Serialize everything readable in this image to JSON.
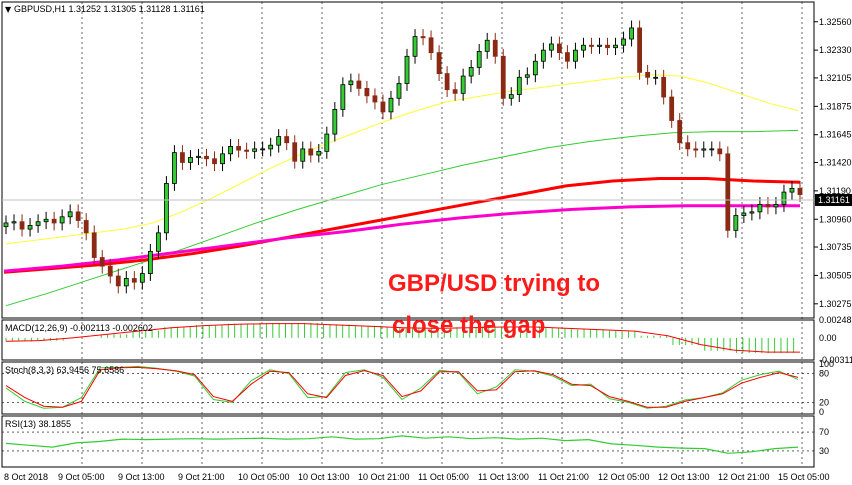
{
  "window": {
    "title": "GBPUSD,H1  1.31252 1.31305 1.31128 1.31161"
  },
  "colors": {
    "bull": "#000000",
    "bear": "#8b2a14",
    "bull_fill": "#33cc33",
    "ma_fast": "#ffff33",
    "ma_mid": "#33cc33",
    "ma_slow_red": "#ff0000",
    "ma_magenta": "#ff00cc",
    "macd_hist": "#33cc33",
    "macd_signal": "#ff0000",
    "stoch_main": "#33cc33",
    "stoch_signal": "#ff0000",
    "rsi": "#33cc33"
  },
  "annotation": {
    "line1": "GBP/USD trying to",
    "line2": "close the gap"
  },
  "chart_data": [
    {
      "type": "candlestick",
      "title": "GBPUSD,H1",
      "ohlc_readout": [
        "1.31252",
        "1.31305",
        "1.31128",
        "1.31161"
      ],
      "ylim": [
        1.3016,
        1.3272
      ],
      "y_ticks": [
        "1.32560",
        "1.32330",
        "1.32105",
        "1.31875",
        "1.31645",
        "1.31420",
        "1.31190",
        "1.30960",
        "1.30735",
        "1.30505",
        "1.30275"
      ],
      "current_price": "1.31161",
      "x_ticks": [
        "8 Oct 2018",
        "9 Oct 05:00",
        "9 Oct 13:00",
        "9 Oct 21:00",
        "10 Oct 05:00",
        "10 Oct 13:00",
        "10 Oct 21:00",
        "11 Oct 05:00",
        "11 Oct 13:00",
        "11 Oct 21:00",
        "12 Oct 05:00",
        "12 Oct 13:00",
        "12 Oct 21:00",
        "15 Oct 05:00"
      ],
      "closes": [
        1.3093,
        1.3094,
        1.3088,
        1.3091,
        1.3094,
        1.3096,
        1.3093,
        1.3098,
        1.3102,
        1.3095,
        1.3085,
        1.3065,
        1.3058,
        1.305,
        1.3042,
        1.3048,
        1.3045,
        1.3052,
        1.307,
        1.3085,
        1.3125,
        1.315,
        1.3142,
        1.3146,
        1.3147,
        1.3145,
        1.3141,
        1.3149,
        1.3155,
        1.3152,
        1.3151,
        1.3153,
        1.3153,
        1.3156,
        1.3163,
        1.3158,
        1.3143,
        1.3153,
        1.3148,
        1.3151,
        1.3165,
        1.3185,
        1.3205,
        1.3208,
        1.3202,
        1.3196,
        1.3191,
        1.3183,
        1.3194,
        1.3206,
        1.3228,
        1.3244,
        1.3243,
        1.3231,
        1.3214,
        1.3201,
        1.3198,
        1.3212,
        1.3219,
        1.3232,
        1.3241,
        1.3228,
        1.3194,
        1.3197,
        1.3211,
        1.3213,
        1.3224,
        1.3233,
        1.3238,
        1.3231,
        1.3224,
        1.3233,
        1.3237,
        1.3236,
        1.3237,
        1.3235,
        1.3237,
        1.3242,
        1.3251,
        1.3215,
        1.3211,
        1.3211,
        1.3195,
        1.3176,
        1.3158,
        1.3153,
        1.3152,
        1.3153,
        1.3153,
        1.3149,
        1.3087,
        1.3099,
        1.3101,
        1.3102,
        1.3108,
        1.3106,
        1.3108,
        1.3118,
        1.3121,
        1.3116
      ],
      "series": [
        {
          "name": "MA yellow",
          "values": [
            1.3076,
            1.3079,
            1.3082,
            1.3085,
            1.3088,
            1.3093,
            1.3102,
            1.3113,
            1.3125,
            1.3137,
            1.3148,
            1.3158,
            1.3167,
            1.3176,
            1.3184,
            1.3191,
            1.3195,
            1.3199,
            1.3202,
            1.3205,
            1.3208,
            1.3211,
            1.3213,
            1.3212,
            1.3206,
            1.3198,
            1.319,
            1.3184
          ]
        },
        {
          "name": "MA green",
          "values": [
            1.3026,
            1.3036,
            1.3047,
            1.3058,
            1.3069,
            1.3081,
            1.3093,
            1.3104,
            1.3114,
            1.3124,
            1.3132,
            1.314,
            1.3147,
            1.3154,
            1.3159,
            1.3163,
            1.3166,
            1.3167,
            1.3167,
            1.3168
          ]
        },
        {
          "name": "MA red",
          "values": [
            1.3053,
            1.3056,
            1.3059,
            1.3063,
            1.3068,
            1.3074,
            1.3081,
            1.3088,
            1.3095,
            1.3102,
            1.3109,
            1.3116,
            1.3123,
            1.3127,
            1.3129,
            1.3129,
            1.3127,
            1.3126
          ]
        },
        {
          "name": "MA magenta",
          "values": [
            1.3054,
            1.3058,
            1.3063,
            1.3069,
            1.3075,
            1.3081,
            1.3086,
            1.3092,
            1.3097,
            1.3101,
            1.3104,
            1.3106,
            1.3107,
            1.3107,
            1.3107
          ]
        }
      ]
    },
    {
      "type": "bar",
      "title": "MACD(12,26,9) -0.002113 -0.002602",
      "y_ticks": [
        "0.002485",
        "0.00",
        "-0.003112"
      ],
      "ylim": [
        -0.0031,
        0.0025
      ],
      "values": [
        -0.0005,
        -0.0004,
        0.0,
        0.0005,
        0.001,
        0.0015,
        0.0018,
        0.002,
        0.0021,
        0.0021,
        0.0019,
        0.0017,
        0.0015,
        0.0014,
        0.0015,
        0.0016,
        0.0016,
        0.0014,
        0.0012,
        0.001,
        0.0003,
        -0.001,
        -0.0018,
        -0.0021,
        -0.0021
      ]
    },
    {
      "type": "line",
      "title": "Stoch(8,3,3) 63.9456 75.6586",
      "y_ticks": [
        "100",
        "80",
        "20",
        "0"
      ],
      "ylim": [
        0,
        100
      ],
      "series": [
        {
          "name": "main",
          "values": [
            50,
            22,
            8,
            10,
            30,
            92,
            93,
            95,
            91,
            85,
            75,
            26,
            20,
            65,
            88,
            80,
            30,
            32,
            82,
            88,
            72,
            26,
            50,
            87,
            82,
            38,
            52,
            88,
            85,
            75,
            55,
            58,
            28,
            20,
            8,
            12,
            25,
            30,
            40,
            66,
            78,
            85,
            68
          ]
        },
        {
          "name": "signal",
          "values": [
            55,
            30,
            12,
            10,
            22,
            88,
            92,
            93,
            90,
            86,
            78,
            32,
            22,
            58,
            85,
            82,
            38,
            30,
            76,
            86,
            76,
            32,
            44,
            84,
            84,
            44,
            46,
            84,
            86,
            78,
            58,
            55,
            32,
            22,
            10,
            10,
            22,
            30,
            38,
            60,
            72,
            82,
            72
          ]
        }
      ]
    },
    {
      "type": "line",
      "title": "RSI(13) 38.1855",
      "y_ticks": [
        "70",
        "30"
      ],
      "ylim": [
        0,
        100
      ],
      "values": [
        46,
        42,
        38,
        47,
        50,
        55,
        54,
        55,
        56,
        55,
        56,
        57,
        55,
        56,
        60,
        55,
        56,
        62,
        57,
        60,
        56,
        58,
        55,
        57,
        52,
        54,
        45,
        42,
        38,
        36,
        35,
        25,
        28,
        35,
        38
      ]
    }
  ]
}
